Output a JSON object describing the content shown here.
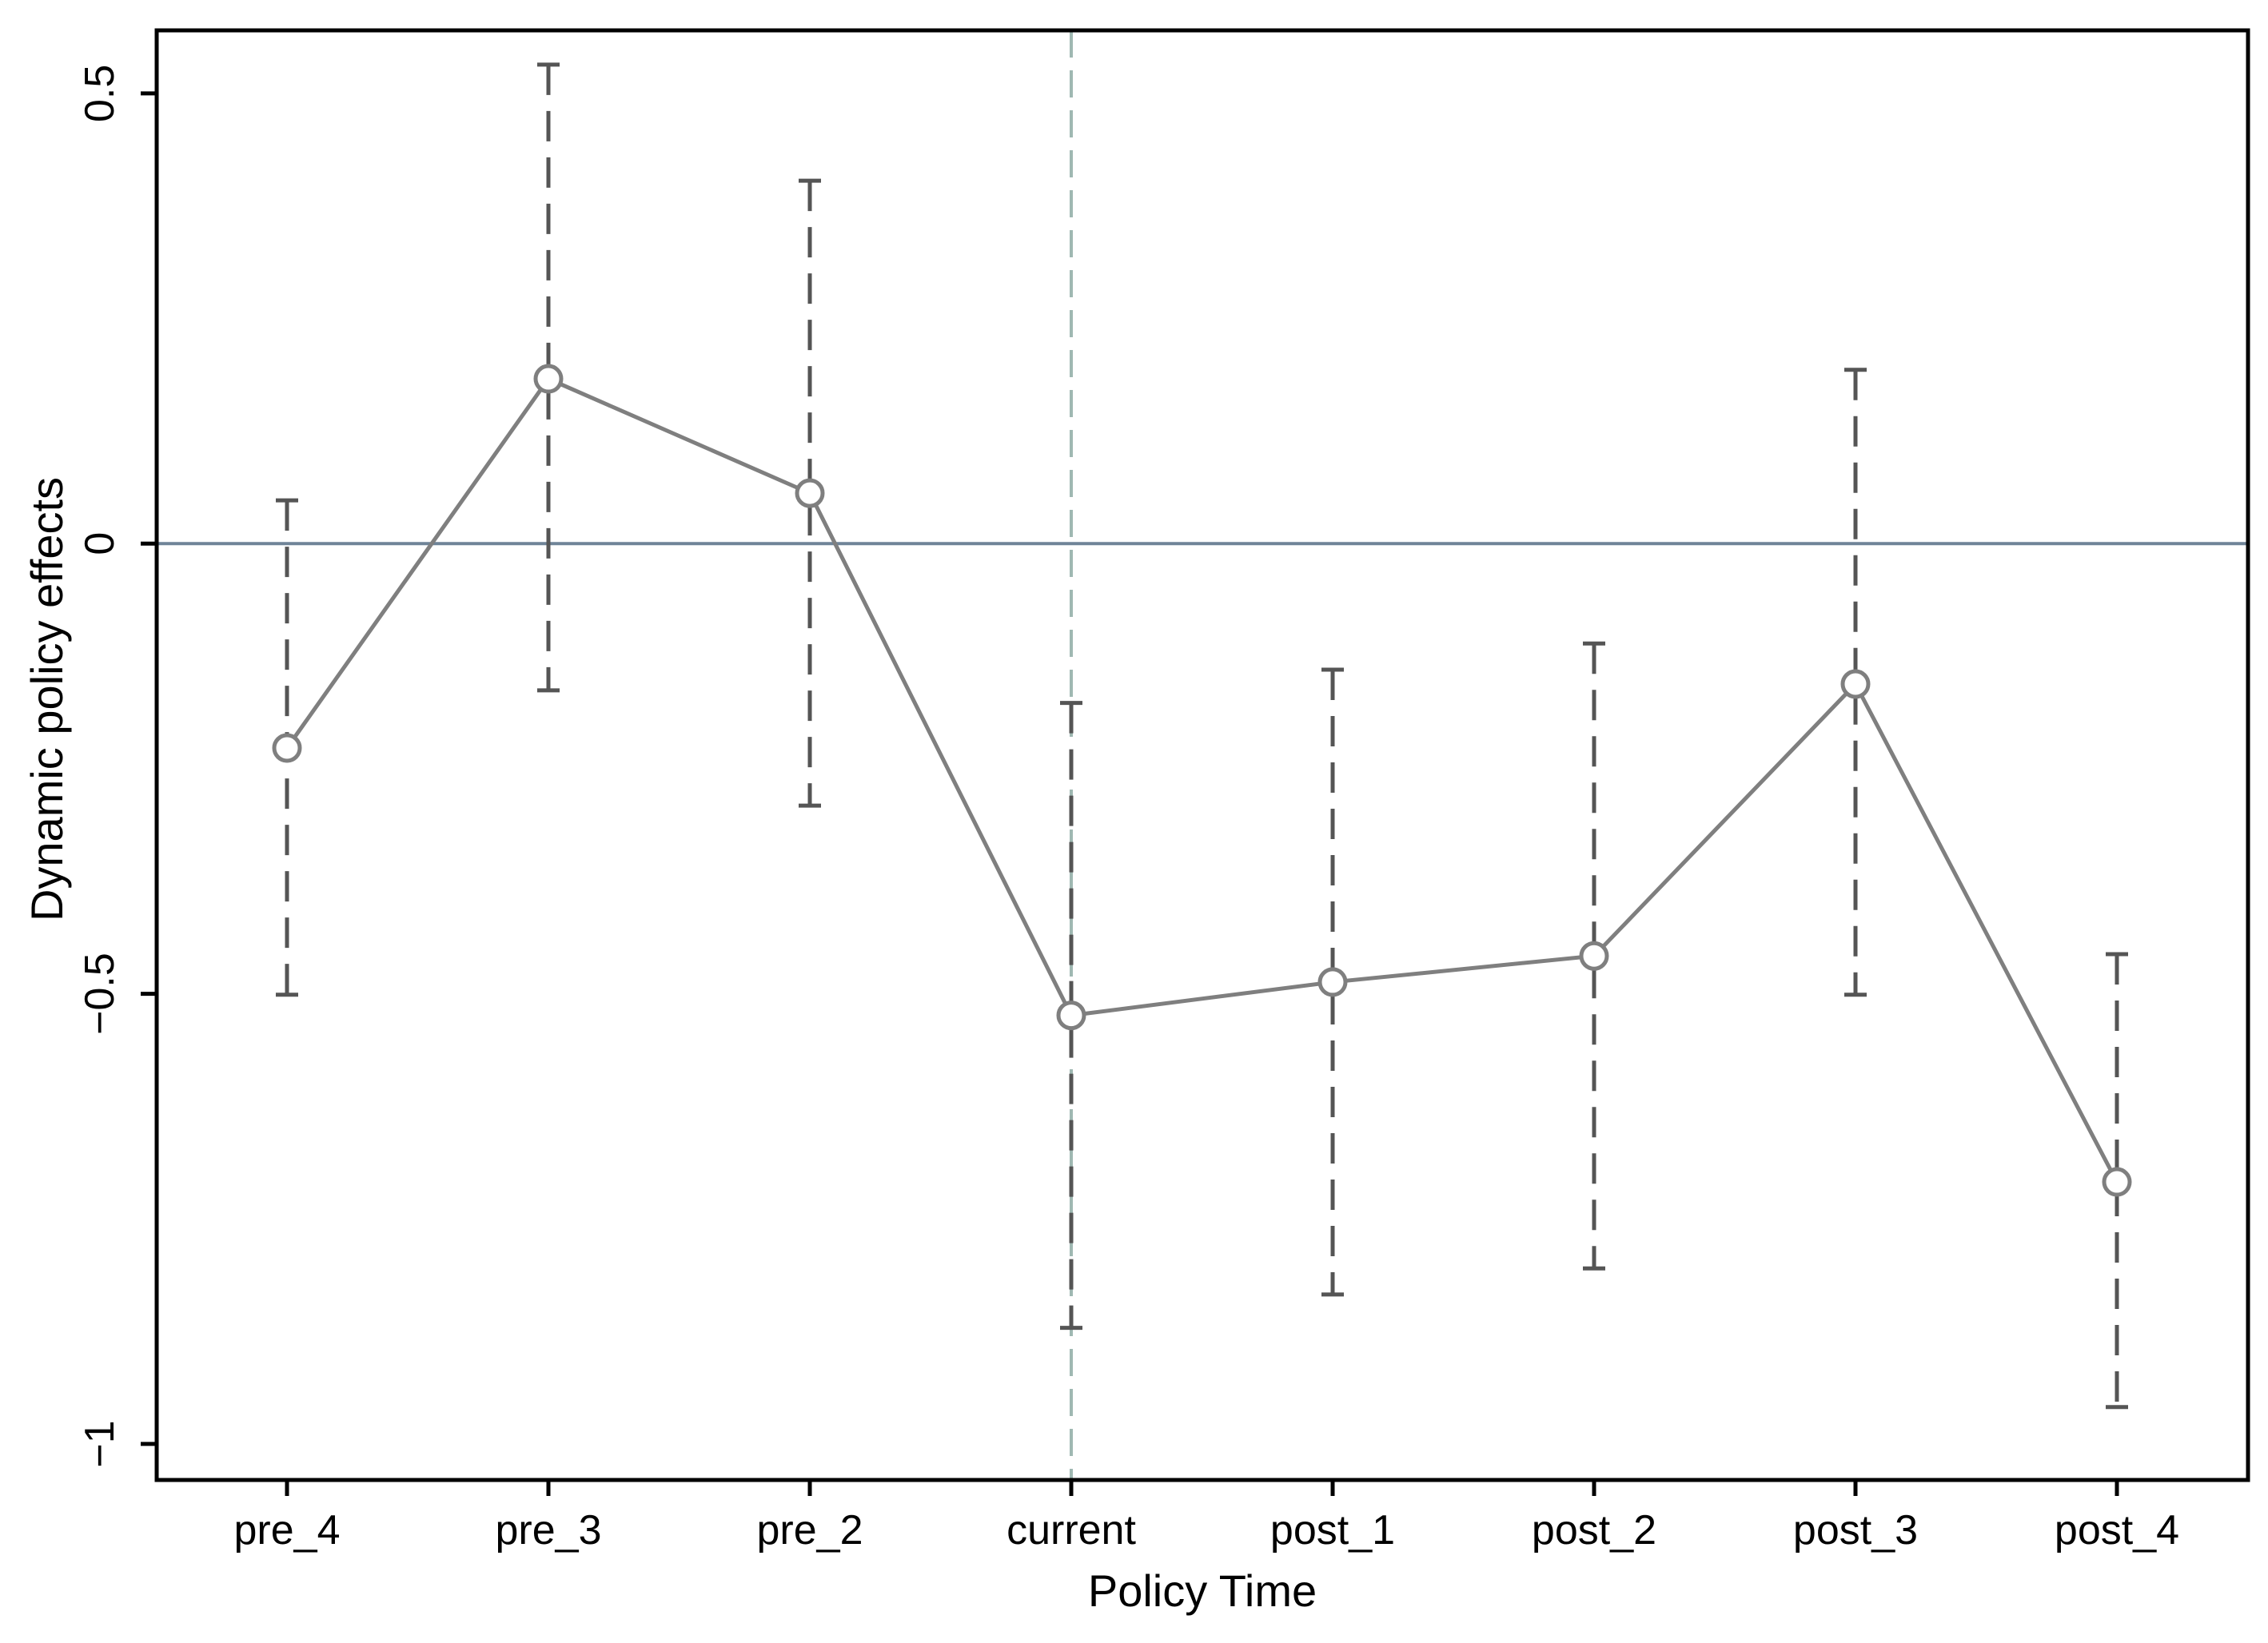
{
  "chart_data": {
    "type": "line",
    "title": "",
    "xlabel": "Policy Time",
    "ylabel": "Dynamic policy effects",
    "categories": [
      "pre_4",
      "pre_3",
      "pre_2",
      "current",
      "post_1",
      "post_2",
      "post_3",
      "post_4"
    ],
    "series": [
      {
        "values": [
          -0.227,
          0.183,
          0.056,
          -0.524,
          -0.487,
          -0.458,
          -0.156,
          -0.709
        ],
        "ci_lower": [
          -0.501,
          -0.163,
          -0.291,
          -0.871,
          -0.834,
          -0.805,
          -0.501,
          -0.959
        ],
        "ci_upper": [
          0.048,
          0.532,
          0.403,
          -0.177,
          -0.14,
          -0.111,
          0.193,
          -0.456
        ]
      }
    ],
    "yticks": [
      0.5,
      0,
      -0.5,
      -1
    ],
    "ytick_labels": [
      "0.5",
      "0",
      "−0.5",
      "−1"
    ],
    "ylim": [
      -1.04,
      0.57
    ],
    "reference_lines": {
      "horizontal_y": 0,
      "vertical_at_category": "current"
    },
    "grid": false,
    "legend": "none",
    "colors": {
      "series_line": "#7f7f7f",
      "ci_bars": "#555555",
      "zero_line": "#6f8498",
      "vertical_line": "#9fb8b2",
      "frame": "#000000"
    }
  }
}
